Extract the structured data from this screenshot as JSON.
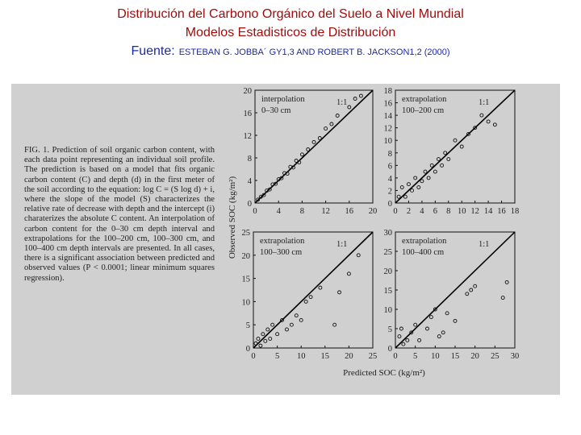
{
  "header": {
    "title": "Distribución del Carbono Orgánico del Suelo a Nivel Mundial",
    "subtitle": "Modelos Estadisticos de Distribución",
    "source_label": "Fuente:",
    "source": "ESTEBAN G. JOBBA´ GY1,3 AND ROBERT B. JACKSON1,2 (2000)"
  },
  "caption": "FIG. 1. Prediction of soil organic carbon content, with each data point representing an individual soil profile. The prediction is based on a model that fits organic carbon content (C) and depth (d) in the first meter of the soil according to the equation: log C = (S log d) + i, where the slope of the model (S) characterizes the relative rate of decrease with depth and the intercept (i) charaterizes the absolute C content. An interpolation of carbon content for the 0–30 cm depth interval and extrapolations for the 100–200 cm, 100–300 cm, and 100–400 cm depth intervals are presented. In all cases, there is a significant association between predicted and observed values (P < 0.0001; linear minimum squares regression).",
  "figure": {
    "xlabel": "Predicted SOC (kg/m²)",
    "ylabel": "Observed SOC (kg/m²)"
  },
  "chart_data": [
    {
      "type": "scatter",
      "label": "interpolation",
      "depth": "0–30 cm",
      "line_label": "1:1",
      "xlim": [
        0,
        20
      ],
      "ylim": [
        0,
        20
      ],
      "xticks": [
        0,
        4,
        8,
        12,
        16,
        20
      ],
      "yticks": [
        0,
        4,
        8,
        12,
        16,
        20
      ],
      "x": [
        0.5,
        1,
        1.5,
        2,
        2.5,
        3,
        3.5,
        4,
        4.5,
        5,
        5.5,
        6,
        6.5,
        7,
        7.5,
        8,
        9,
        10,
        11,
        12,
        13,
        14,
        16,
        17,
        18
      ],
      "values": [
        0.6,
        1.1,
        1.4,
        2.2,
        2.4,
        3.3,
        3.4,
        4.2,
        4.4,
        5.3,
        5.2,
        6.4,
        6.3,
        7.5,
        7.2,
        8.6,
        9.5,
        10.8,
        11.5,
        13.2,
        14,
        15.5,
        17,
        18.5,
        19
      ]
    },
    {
      "type": "scatter",
      "label": "extrapolation",
      "depth": "100–200 cm",
      "line_label": "1:1",
      "xlim": [
        0,
        18
      ],
      "ylim": [
        0,
        18
      ],
      "xticks": [
        0,
        2,
        4,
        6,
        8,
        10,
        12,
        14,
        16,
        18
      ],
      "yticks": [
        0,
        2,
        4,
        6,
        8,
        10,
        12,
        14,
        16,
        18
      ],
      "x": [
        0.5,
        1,
        1.5,
        2,
        2.5,
        3,
        3.5,
        4,
        4.5,
        5,
        5.5,
        6,
        6.5,
        7,
        7.5,
        8,
        9,
        10,
        11,
        12,
        13,
        14,
        15
      ],
      "values": [
        1,
        2.5,
        1,
        3,
        2,
        4,
        2.5,
        3.5,
        5,
        4,
        6,
        5,
        7,
        6,
        8,
        7,
        10,
        9,
        11,
        12,
        14,
        13,
        12.5
      ]
    },
    {
      "type": "scatter",
      "label": "extrapolation",
      "depth": "100–300 cm",
      "line_label": "1:1",
      "xlim": [
        0,
        25
      ],
      "ylim": [
        0,
        25
      ],
      "xticks": [
        0,
        5,
        10,
        15,
        20,
        25
      ],
      "yticks": [
        0,
        5,
        10,
        15,
        20,
        25
      ],
      "x": [
        0.5,
        1,
        1.5,
        2,
        2.5,
        3,
        3.5,
        4,
        5,
        6,
        7,
        8,
        9,
        10,
        11,
        12,
        14,
        17,
        18,
        20,
        22
      ],
      "values": [
        1,
        2,
        0.5,
        3,
        1.5,
        4,
        2,
        5,
        3,
        6,
        4,
        5,
        7,
        6,
        10,
        11,
        13,
        5,
        12,
        16,
        20
      ]
    },
    {
      "type": "scatter",
      "label": "extrapolation",
      "depth": "100–400 cm",
      "line_label": "1:1",
      "xlim": [
        0,
        30
      ],
      "ylim": [
        0,
        30
      ],
      "xticks": [
        0,
        5,
        10,
        15,
        20,
        25,
        30
      ],
      "yticks": [
        0,
        5,
        10,
        15,
        20,
        25,
        30
      ],
      "x": [
        1,
        1.5,
        2,
        3,
        4,
        5,
        6,
        8,
        9,
        10,
        11,
        12,
        13,
        15,
        18,
        19,
        20,
        27,
        28
      ],
      "values": [
        3,
        5,
        1,
        2,
        4,
        6,
        2,
        5,
        8,
        10,
        3,
        4,
        9,
        7,
        14,
        15,
        16,
        13,
        17
      ]
    }
  ]
}
